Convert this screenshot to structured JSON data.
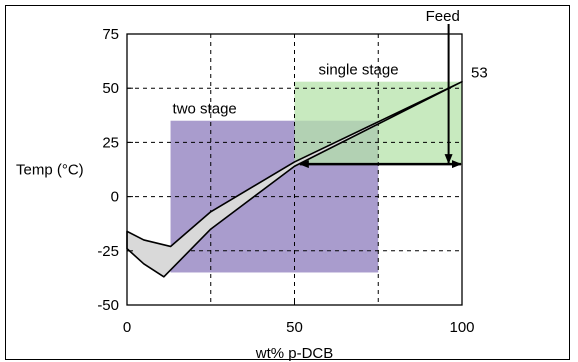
{
  "chart_data": {
    "type": "area",
    "title": "",
    "xlabel": "wt% p-DCB",
    "ylabel": "Temp (°C)",
    "xlim": [
      0,
      100
    ],
    "ylim": [
      -50,
      75
    ],
    "x_ticks": [
      0,
      50,
      100
    ],
    "y_ticks": [
      75,
      50,
      25,
      0,
      -25,
      -50
    ],
    "grid": true,
    "regions": [
      {
        "name": "two stage",
        "x": [
          13,
          75
        ],
        "y": [
          -35,
          35
        ],
        "color": "#9a8bc4"
      },
      {
        "name": "single stage",
        "x": [
          50,
          100
        ],
        "y": [
          15,
          53
        ],
        "color": "#b6e3aa"
      }
    ],
    "band": {
      "color": "#d9d9d9",
      "upper": {
        "x": [
          0,
          5,
          13,
          25,
          50,
          100
        ],
        "y": [
          -16,
          -20,
          -23,
          -7,
          16,
          53
        ]
      },
      "lower": {
        "x": [
          0,
          5,
          11,
          25,
          50,
          100
        ],
        "y": [
          -24,
          -31,
          -37,
          -15,
          14,
          53
        ]
      }
    },
    "annotations": {
      "feed_label": "Feed",
      "endpoint_label": "53",
      "feed_arrow": {
        "x": 96,
        "y_from": 75,
        "y_to": 15
      },
      "range_arrow": {
        "x_from": 51,
        "x_to": 100,
        "y": 15
      }
    }
  }
}
